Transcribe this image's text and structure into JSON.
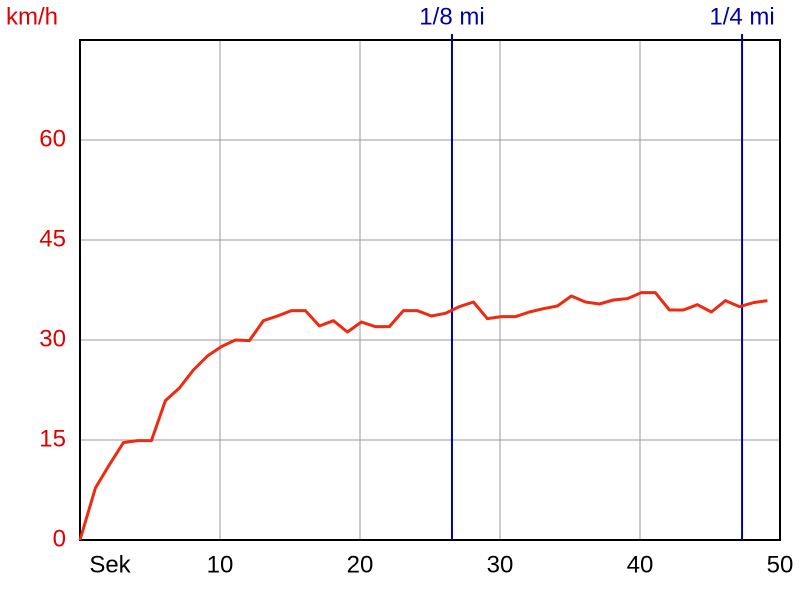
{
  "chart_data": {
    "type": "line",
    "y_label": "km/h",
    "x_label": "Sek",
    "x": [
      0,
      1.1,
      2.1,
      3.1,
      4.1,
      5.1,
      6.1,
      7.1,
      8.1,
      9.1,
      10.1,
      11.1,
      12.1,
      13.1,
      14.1,
      15.1,
      16.1,
      17.1,
      18.1,
      19.1,
      20.1,
      21.1,
      22.1,
      23.1,
      24.1,
      25.1,
      26.1,
      27.1,
      28.1,
      29.1,
      30.1,
      31.1,
      32.1,
      33.1,
      34.1,
      35.1,
      36.1,
      37.1,
      38.1,
      39.1,
      40.1,
      41.1,
      42.1,
      43.1,
      44.1,
      45.1,
      46.1,
      47.1,
      48.1,
      49.1
    ],
    "series": [
      {
        "color": "#ee2a10",
        "values": [
          0,
          7.8,
          11.3,
          14.6,
          14.9,
          14.9,
          20.9,
          22.8,
          25.5,
          27.6,
          29,
          30,
          29.9,
          32.9,
          33.6,
          34.4,
          34.4,
          32.1,
          32.9,
          31.2,
          32.7,
          32,
          32,
          34.4,
          34.4,
          33.6,
          34,
          35,
          35.7,
          33.2,
          33.5,
          33.5,
          34.2,
          34.7,
          35.1,
          36.6,
          35.7,
          35.4,
          36,
          36.2,
          37.1,
          37.1,
          34.5,
          34.5,
          35.3,
          34.2,
          35.9,
          35,
          35.6,
          35.9
        ]
      }
    ],
    "markers": [
      {
        "x": 26.57,
        "label": "1/8 mi",
        "color": "#0000aa"
      },
      {
        "x": 47.29,
        "label": "1/4 mi",
        "color": "#0000aa"
      }
    ],
    "xlim": [
      0,
      50
    ],
    "xticks": [
      10,
      20,
      30,
      40,
      50
    ],
    "ylim": [
      0,
      75
    ],
    "yticks": [
      0,
      15,
      30,
      45,
      60
    ],
    "grid": true,
    "axis_label_color": "#e00000"
  }
}
